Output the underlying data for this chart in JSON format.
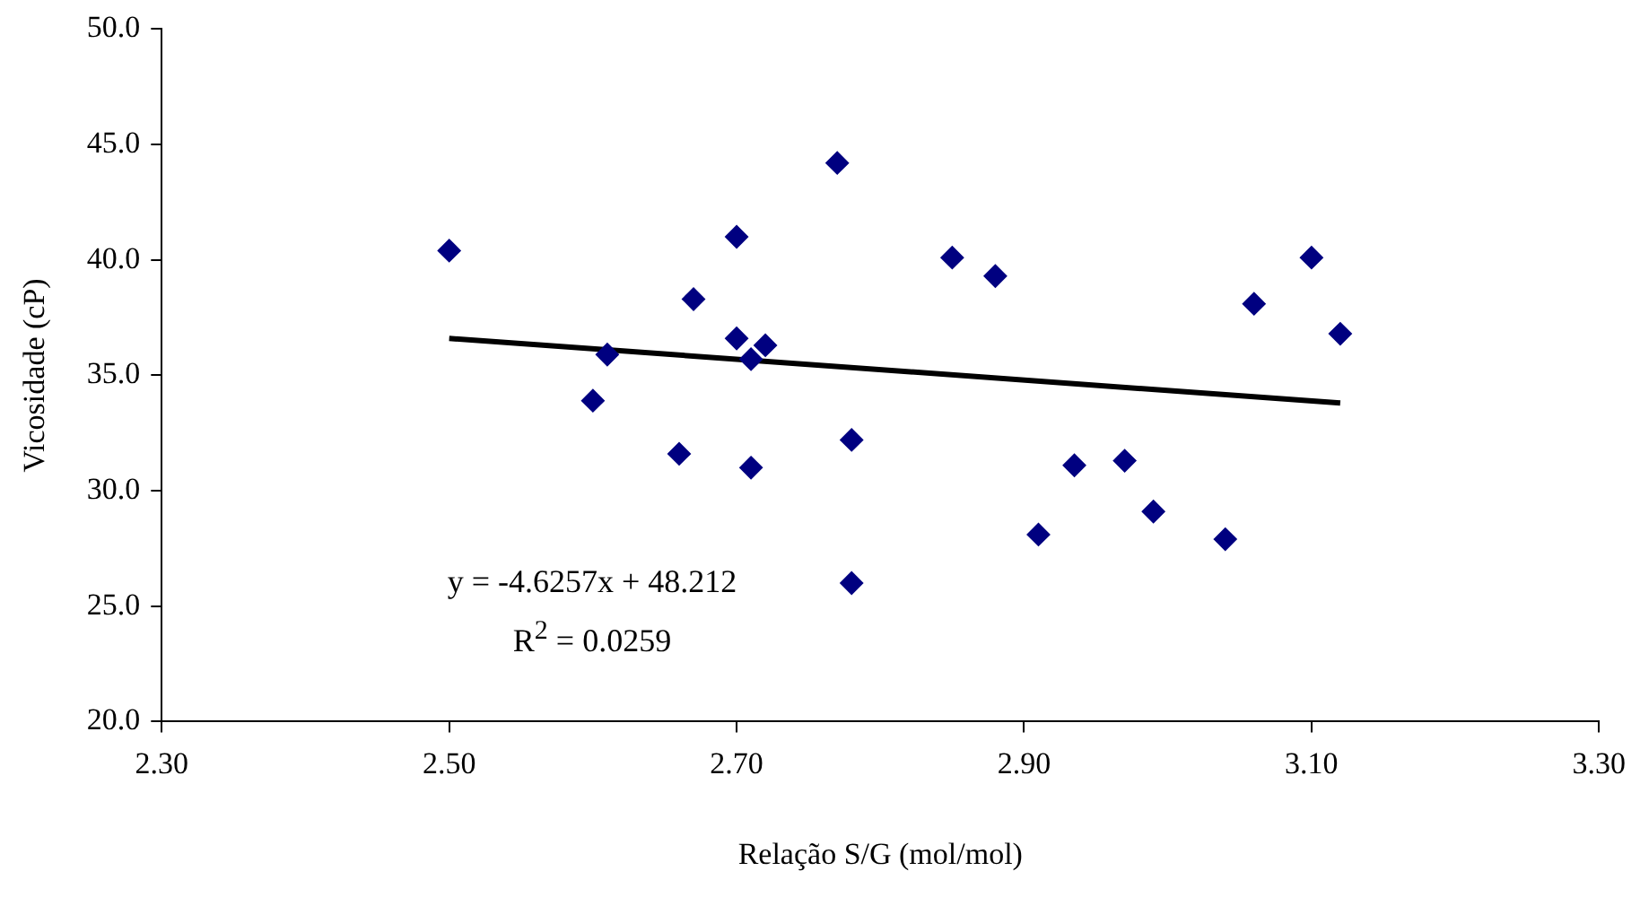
{
  "chart_data": {
    "type": "scatter",
    "xlabel": "Relação S/G (mol/mol)",
    "ylabel": "Vicosidade (cP)",
    "marker": "diamond",
    "grid": false,
    "legend": false,
    "xlim": [
      2.3,
      3.3
    ],
    "xticks": [
      {
        "value": 2.3,
        "label": "2.30"
      },
      {
        "value": 2.5,
        "label": "2.50"
      },
      {
        "value": 2.7,
        "label": "2.70"
      },
      {
        "value": 2.9,
        "label": "2.90"
      },
      {
        "value": 3.1,
        "label": "3.10"
      },
      {
        "value": 3.3,
        "label": "3.30"
      }
    ],
    "ylim": [
      20,
      50
    ],
    "yticks": [
      {
        "value": 20,
        "label": "20.0"
      },
      {
        "value": 25,
        "label": "25.0"
      },
      {
        "value": 30,
        "label": "30.0"
      },
      {
        "value": 35,
        "label": "35.0"
      },
      {
        "value": 40,
        "label": "40.0"
      },
      {
        "value": 45,
        "label": "45.0"
      },
      {
        "value": 50,
        "label": "50.0"
      }
    ],
    "series": [
      {
        "color": "#000080",
        "x": [
          2.5,
          2.6,
          2.61,
          2.66,
          2.67,
          2.7,
          2.7,
          2.71,
          2.71,
          2.72,
          2.77,
          2.78,
          2.78,
          2.85,
          2.88,
          2.91,
          2.935,
          2.97,
          2.99,
          3.04,
          3.06,
          3.1,
          3.12
        ],
        "values": [
          40.4,
          33.9,
          35.9,
          31.6,
          38.3,
          41.0,
          36.6,
          35.7,
          31.0,
          36.3,
          44.2,
          32.2,
          26.0,
          40.1,
          39.3,
          28.1,
          31.1,
          31.3,
          29.1,
          27.9,
          38.1,
          40.1,
          36.8
        ]
      },
      {
        "type": "line",
        "color": "#000000",
        "marker": "none",
        "x": [
          2.5,
          3.12
        ],
        "values": [
          36.6,
          33.8
        ]
      }
    ],
    "annotations": [
      "y = -4.6257x + 48.212",
      "R$^{2}$ = 0.0259"
    ]
  }
}
